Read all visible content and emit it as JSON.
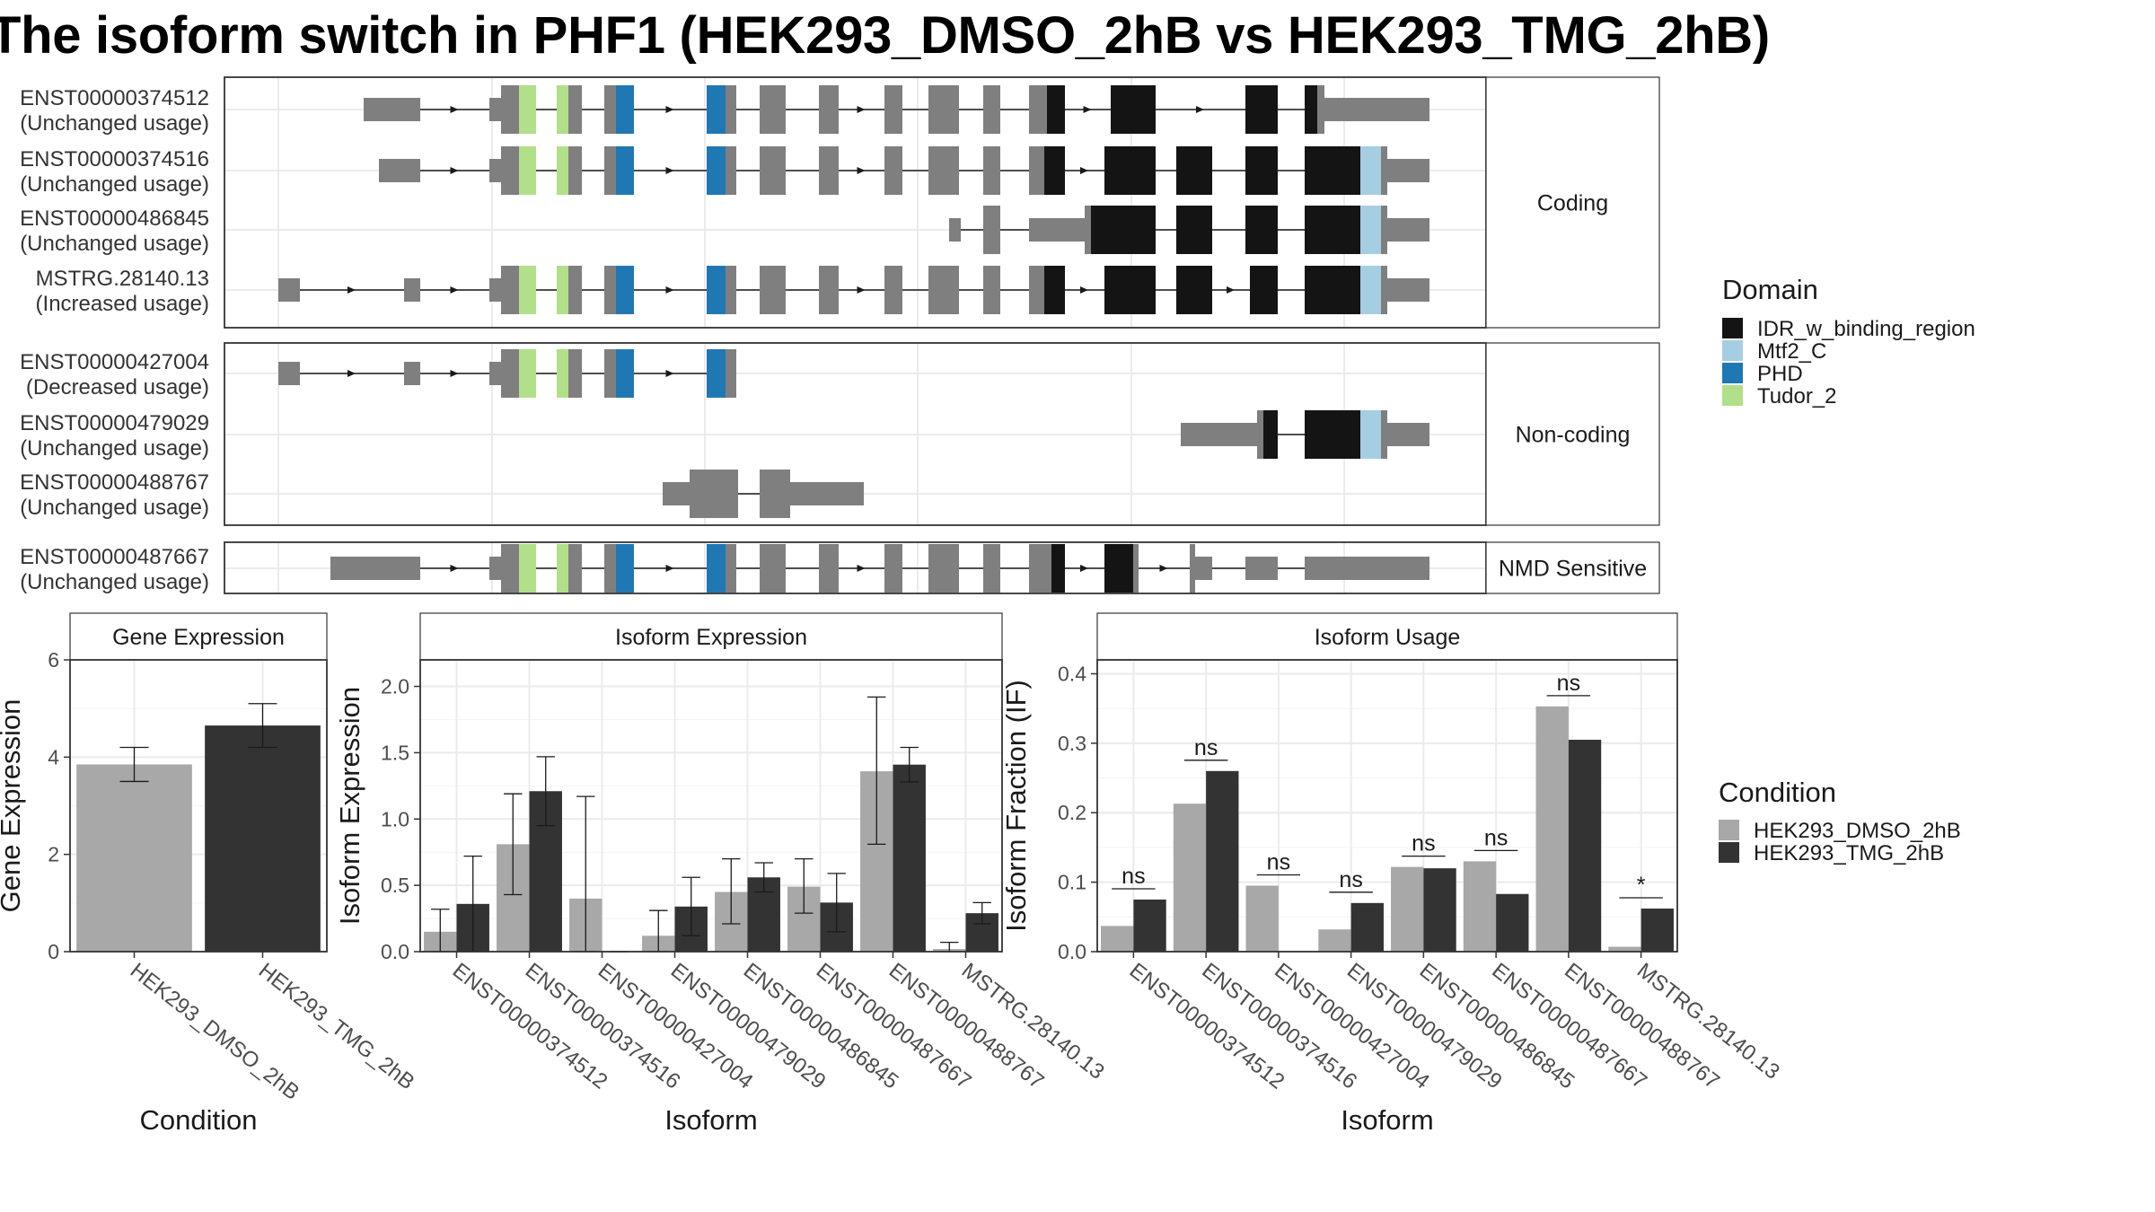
{
  "title": "The isoform switch in PHF1 (HEK293_DMSO_2hB vs HEK293_TMG_2hB)",
  "colors": {
    "IDR_w_binding_region": "#141414",
    "Mtf2_C": "#a6cee3",
    "PHD": "#1f78b4",
    "Tudor_2": "#b2df8a",
    "no_domain": "#7f7f7f",
    "HEK293_DMSO_2hB": "#a8a8a8",
    "HEK293_TMG_2hB": "#333333"
  },
  "domain_legend": {
    "title": "Domain",
    "items": [
      {
        "key": "IDR_w_binding_region",
        "label": "IDR_w_binding_region"
      },
      {
        "key": "Mtf2_C",
        "label": "Mtf2_C"
      },
      {
        "key": "PHD",
        "label": "PHD"
      },
      {
        "key": "Tudor_2",
        "label": "Tudor_2"
      }
    ]
  },
  "condition_legend": {
    "title": "Condition",
    "items": [
      {
        "key": "HEK293_DMSO_2hB",
        "label": "HEK293_DMSO_2hB"
      },
      {
        "key": "HEK293_TMG_2hB",
        "label": "HEK293_TMG_2hB"
      }
    ]
  },
  "chart_data": [
    {
      "type": "table",
      "panel": "transcript-structures",
      "groups": [
        {
          "label": "Coding",
          "transcripts": [
            {
              "id": "ENST00000374512",
              "usage": "(Unchanged usage)"
            },
            {
              "id": "ENST00000374516",
              "usage": "(Unchanged usage)"
            },
            {
              "id": "ENST00000486845",
              "usage": "(Unchanged usage)"
            },
            {
              "id": "MSTRG.28140.13",
              "usage": "(Increased usage)"
            }
          ]
        },
        {
          "label": "Non-coding",
          "transcripts": [
            {
              "id": "ENST00000427004",
              "usage": "(Decreased usage)"
            },
            {
              "id": "ENST00000479029",
              "usage": "(Unchanged usage)"
            },
            {
              "id": "ENST00000488767",
              "usage": "(Unchanged usage)"
            }
          ]
        },
        {
          "label": "NMD Sensitive",
          "transcripts": [
            {
              "id": "ENST00000487667",
              "usage": "(Unchanged usage)"
            }
          ]
        }
      ]
    },
    {
      "type": "bar",
      "title": "Gene Expression",
      "xlabel": "Condition",
      "ylabel": "Gene Expression",
      "ylim": [
        0,
        6
      ],
      "yticks": [
        "0",
        "2",
        "4",
        "6"
      ],
      "categories": [
        "HEK293_DMSO_2hB",
        "HEK293_TMG_2hB"
      ],
      "values": [
        3.85,
        4.65
      ],
      "errors": [
        [
          3.5,
          4.2
        ],
        [
          4.2,
          5.1
        ]
      ]
    },
    {
      "type": "bar",
      "title": "Isoform Expression",
      "xlabel": "Isoform",
      "ylabel": "Isoform Expression",
      "ylim": [
        0,
        2.2
      ],
      "yticks": [
        "0.0",
        "0.5",
        "1.0",
        "1.5",
        "2.0"
      ],
      "categories": [
        "ENST00000374512",
        "ENST00000374516",
        "ENST00000427004",
        "ENST00000479029",
        "ENST00000486845",
        "ENST00000487667",
        "ENST00000488767",
        "MSTRG.28140.13"
      ],
      "series": [
        {
          "name": "HEK293_DMSO_2hB",
          "values": [
            0.15,
            0.81,
            0.4,
            0.12,
            0.45,
            0.49,
            1.36,
            0.02
          ],
          "errors": [
            [
              0.0,
              0.32
            ],
            [
              0.43,
              1.19
            ],
            [
              0.0,
              1.17
            ],
            [
              0.0,
              0.31
            ],
            [
              0.21,
              0.7
            ],
            [
              0.29,
              0.7
            ],
            [
              0.81,
              1.92
            ],
            [
              0.0,
              0.07
            ]
          ]
        },
        {
          "name": "HEK293_TMG_2hB",
          "values": [
            0.36,
            1.21,
            0.0,
            0.34,
            0.56,
            0.37,
            1.41,
            0.29
          ],
          "errors": [
            [
              0.0,
              0.72
            ],
            [
              0.95,
              1.47
            ],
            [
              0.0,
              0.0
            ],
            [
              0.12,
              0.56
            ],
            [
              0.45,
              0.67
            ],
            [
              0.15,
              0.59
            ],
            [
              1.28,
              1.54
            ],
            [
              0.21,
              0.37
            ]
          ]
        }
      ]
    },
    {
      "type": "bar",
      "title": "Isoform Usage",
      "xlabel": "Isoform",
      "ylabel": "Isoform Fraction (IF)",
      "ylim": [
        0,
        0.42
      ],
      "yticks": [
        "0.0",
        "0.1",
        "0.2",
        "0.3",
        "0.4"
      ],
      "categories": [
        "ENST00000374512",
        "ENST00000374516",
        "ENST00000427004",
        "ENST00000479029",
        "ENST00000486845",
        "ENST00000487667",
        "ENST00000488767",
        "MSTRG.28140.13"
      ],
      "series": [
        {
          "name": "HEK293_DMSO_2hB",
          "values": [
            0.037,
            0.213,
            0.095,
            0.032,
            0.122,
            0.13,
            0.353,
            0.007
          ]
        },
        {
          "name": "HEK293_TMG_2hB",
          "values": [
            0.075,
            0.26,
            0.0,
            0.07,
            0.12,
            0.083,
            0.305,
            0.062
          ]
        }
      ],
      "significance": [
        "ns",
        "ns",
        "ns",
        "ns",
        "ns",
        "ns",
        "ns",
        "*"
      ]
    }
  ]
}
